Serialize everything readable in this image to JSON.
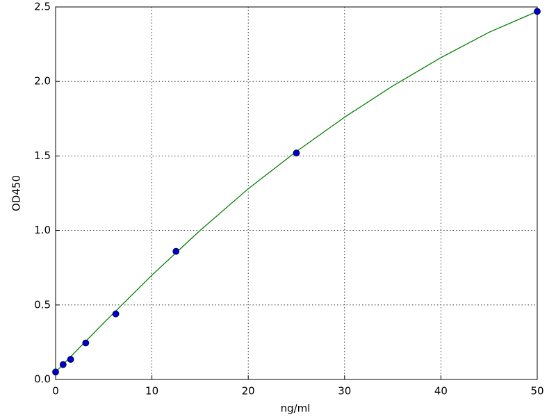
{
  "chart_data": {
    "type": "scatter",
    "xlabel": "ng/ml",
    "ylabel": "OD450",
    "xlim": [
      0,
      50
    ],
    "ylim": [
      0,
      2.5
    ],
    "xticks": [
      0,
      10,
      20,
      30,
      40,
      50
    ],
    "yticks": [
      {
        "value": 0,
        "label": "0.0"
      },
      0.5,
      {
        "value": 1,
        "label": "1.0"
      },
      1.5,
      {
        "value": 2,
        "label": "2.0"
      },
      2.5
    ],
    "grid": true,
    "series": [
      {
        "type": "line",
        "color": "#008000",
        "x": [
          0,
          5,
          10,
          15,
          20,
          25,
          30,
          35,
          40,
          45,
          50
        ],
        "values": [
          0.05,
          0.38,
          0.7,
          1.0,
          1.28,
          1.53,
          1.76,
          1.97,
          2.16,
          2.33,
          2.47
        ]
      },
      {
        "type": "scatter",
        "color": "#0000cc",
        "x": [
          0,
          0.78,
          1.56,
          3.125,
          6.25,
          12.5,
          25,
          50
        ],
        "values": [
          0.05,
          0.1,
          0.135,
          0.245,
          0.44,
          0.86,
          1.52,
          2.47
        ]
      }
    ]
  }
}
